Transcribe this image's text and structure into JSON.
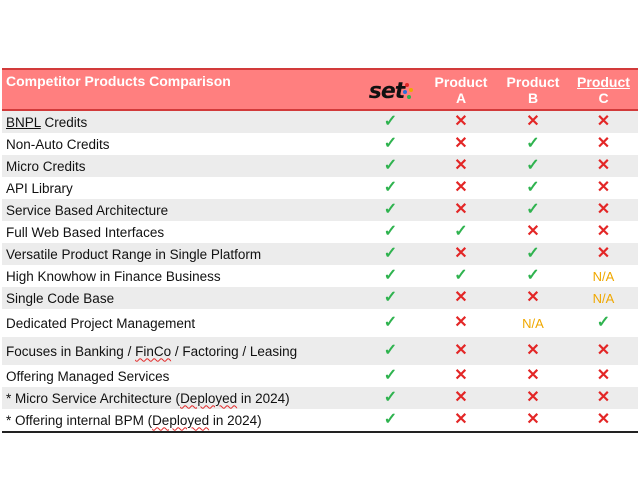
{
  "header": {
    "title": "Competitor Products Comparison",
    "logo_text": "set",
    "product_a": [
      "Product",
      "A"
    ],
    "product_b": [
      "Product",
      "B"
    ],
    "product_c": [
      "Product",
      "C"
    ]
  },
  "symbols": {
    "yes": "✓",
    "no": "✕",
    "na": "N/A"
  },
  "colors": {
    "header_bg": "#ff7f7f",
    "yes": "#2fb34f",
    "no": "#e32626",
    "na": "#f0a800"
  },
  "rows": [
    {
      "label": "BNPL Credits",
      "values": [
        "yes",
        "no",
        "no",
        "no"
      ]
    },
    {
      "label": "Non-Auto Credits",
      "values": [
        "yes",
        "no",
        "yes",
        "no"
      ]
    },
    {
      "label": "Micro Credits",
      "values": [
        "yes",
        "no",
        "yes",
        "no"
      ]
    },
    {
      "label": "API Library",
      "values": [
        "yes",
        "no",
        "yes",
        "no"
      ]
    },
    {
      "label": "Service Based Architecture",
      "values": [
        "yes",
        "no",
        "yes",
        "no"
      ]
    },
    {
      "label": "Full Web Based Interfaces",
      "values": [
        "yes",
        "yes",
        "no",
        "no"
      ]
    },
    {
      "label": "Versatile Product Range in Single Platform",
      "values": [
        "yes",
        "no",
        "yes",
        "no"
      ]
    },
    {
      "label": "High Knowhow in Finance Business",
      "values": [
        "yes",
        "yes",
        "yes",
        "na"
      ]
    },
    {
      "label": "Single Code Base",
      "values": [
        "yes",
        "no",
        "no",
        "na"
      ]
    },
    {
      "label": "Dedicated Project Management",
      "values": [
        "yes",
        "no",
        "na",
        "yes"
      ]
    },
    {
      "label": "Focuses in Banking / FinCo / Factoring / Leasing",
      "values": [
        "yes",
        "no",
        "no",
        "no"
      ]
    },
    {
      "label": "Offering Managed Services",
      "values": [
        "yes",
        "no",
        "no",
        "no"
      ]
    },
    {
      "label": "* Micro Service Architecture (Deployed in 2024)",
      "values": [
        "yes",
        "no",
        "no",
        "no"
      ]
    },
    {
      "label": "* Offering internal BPM (Deployed in 2024)",
      "values": [
        "yes",
        "no",
        "no",
        "no"
      ]
    }
  ]
}
